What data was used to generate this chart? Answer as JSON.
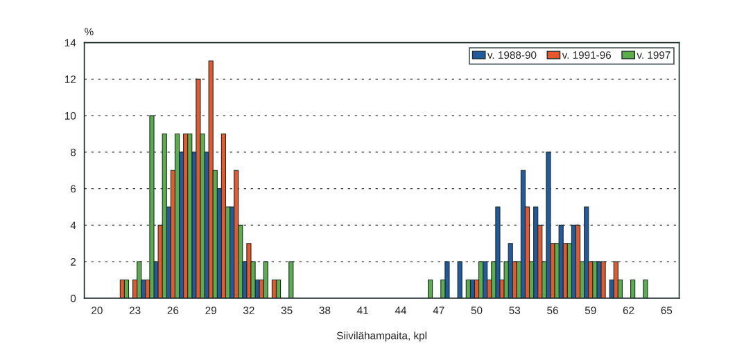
{
  "chart_data": {
    "type": "bar",
    "ylabel": "%",
    "xlabel": "Siivilähampaita, kpl",
    "categories": [
      "20",
      null,
      null,
      "23",
      null,
      null,
      "26",
      null,
      null,
      "29",
      null,
      null,
      "32",
      null,
      null,
      "35",
      null,
      null,
      "38",
      null,
      null,
      "41",
      null,
      null,
      "44",
      null,
      null,
      "47",
      null,
      null,
      "50",
      null,
      null,
      "53",
      null,
      null,
      "56",
      null,
      null,
      "59",
      null,
      null,
      "62",
      null,
      null,
      "65"
    ],
    "series": [
      {
        "name": "v. 1988-90",
        "color": "#1f5b9e",
        "values": [
          0,
          0,
          0,
          0,
          1,
          2,
          5,
          8,
          8,
          8,
          6,
          5,
          2,
          1,
          0,
          0,
          0,
          0,
          0,
          0,
          0,
          0,
          0,
          0,
          0,
          0,
          0,
          0,
          2,
          2,
          1,
          2,
          5,
          3,
          7,
          5,
          8,
          4,
          4,
          5,
          2,
          1,
          0,
          0,
          0,
          0
        ]
      },
      {
        "name": "v. 1991-96",
        "color": "#e8582a",
        "values": [
          0,
          0,
          1,
          1,
          1,
          4,
          7,
          9,
          12,
          13,
          9,
          7,
          3,
          1,
          1,
          0,
          0,
          0,
          0,
          0,
          0,
          0,
          0,
          0,
          0,
          0,
          0,
          0,
          0,
          0,
          1,
          1,
          1,
          2,
          5,
          4,
          3,
          3,
          4,
          2,
          2,
          2,
          0,
          0,
          0,
          0
        ]
      },
      {
        "name": "v. 1997",
        "color": "#5cae4a",
        "values": [
          0,
          0,
          1,
          2,
          10,
          9,
          9,
          9,
          9,
          7,
          5,
          4,
          2,
          2,
          1,
          2,
          0,
          0,
          0,
          0,
          0,
          0,
          0,
          0,
          0,
          0,
          1,
          1,
          0,
          1,
          2,
          2,
          2,
          2,
          2,
          2,
          3,
          3,
          2,
          2,
          0,
          1,
          1,
          1,
          0,
          0
        ]
      }
    ],
    "ylim": [
      0,
      14
    ],
    "yticks": [
      0,
      2,
      4,
      6,
      8,
      10,
      12,
      14
    ],
    "grid": "y",
    "legend": "top right"
  }
}
